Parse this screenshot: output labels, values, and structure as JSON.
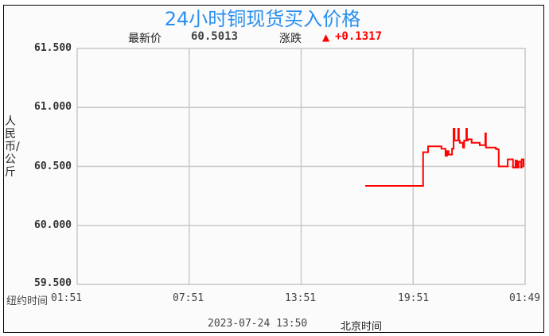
{
  "chart_data": {
    "type": "line",
    "title": "24小时铜现货买入价格",
    "latest_label": "最新价",
    "latest_value": "60.5013",
    "change_label": "涨跌",
    "change_value": "+0.1317",
    "change_icon": "triangle-up-icon",
    "ylabel": "人民币/公斤",
    "x_axis_label": "纽约时间",
    "ylim": [
      59.5,
      61.5
    ],
    "yticks": [
      "61.500",
      "61.000",
      "60.500",
      "60.000",
      "59.500"
    ],
    "xlim": [
      "01:51",
      "01:51"
    ],
    "xticks": [
      "01:51",
      "07:51",
      "13:51",
      "19:51",
      "01:49"
    ],
    "grid": true,
    "footer_date": "2023-07-24 13:50",
    "footer_zone": "北京时间",
    "colors": {
      "title": "#2a8ff0",
      "series": "#ff0000",
      "grid": "#c8c8c8",
      "change": "#ff0000"
    },
    "series": [
      {
        "x": [
          "17:17",
          "20:23",
          "20:23",
          "20:39",
          "20:39",
          "21:22",
          "21:35",
          "21:40",
          "21:45",
          "21:56",
          "22:01",
          "22:04",
          "22:08",
          "22:16",
          "22:18",
          "22:21",
          "22:31",
          "22:35",
          "22:39",
          "22:42",
          "22:44",
          "22:47",
          "22:59",
          "23:10",
          "23:25",
          "23:43",
          "23:45",
          "23:48",
          "00:16",
          "00:21",
          "00:26",
          "00:52",
          "00:55",
          "01:07",
          "01:12",
          "01:20",
          "01:25",
          "01:30",
          "01:38",
          "01:40",
          "01:46",
          "01:48"
        ],
        "y": [
          60.335,
          60.335,
          60.62,
          60.62,
          60.67,
          60.65,
          60.59,
          60.63,
          60.6,
          60.65,
          60.82,
          60.72,
          60.72,
          60.82,
          60.72,
          60.7,
          60.66,
          60.72,
          60.72,
          60.82,
          60.72,
          60.73,
          60.7,
          60.7,
          60.68,
          60.78,
          60.66,
          60.66,
          60.65,
          60.645,
          60.5,
          60.5,
          60.56,
          60.56,
          60.49,
          60.55,
          60.49,
          60.54,
          60.49,
          60.56,
          60.5,
          60.5
        ]
      }
    ]
  }
}
